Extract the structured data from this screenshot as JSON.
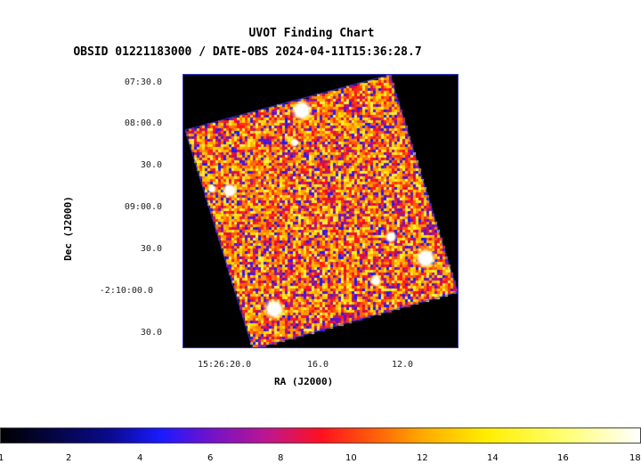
{
  "title": "UVOT Finding Chart",
  "subtitle": "OBSID 01221183000 / DATE-OBS 2024-04-11T15:36:28.7",
  "axes": {
    "x_title": "RA (J2000)",
    "y_title": "Dec (J2000)",
    "x_ticks": [
      "15:26:20.0",
      "16.0",
      "12.0"
    ],
    "y_ticks": [
      "07:30.0",
      "08:00.0",
      "30.0",
      "09:00.0",
      "30.0",
      "-2:10:00.0",
      "30.0"
    ]
  },
  "colorbar": {
    "ticks": [
      "1",
      "2",
      "4",
      "6",
      "8",
      "10",
      "12",
      "14",
      "16",
      "18"
    ]
  },
  "image": {
    "colormap": "black-blue-red-yellow-white heat",
    "background": "#000000",
    "frame_color": "#3333cc"
  }
}
